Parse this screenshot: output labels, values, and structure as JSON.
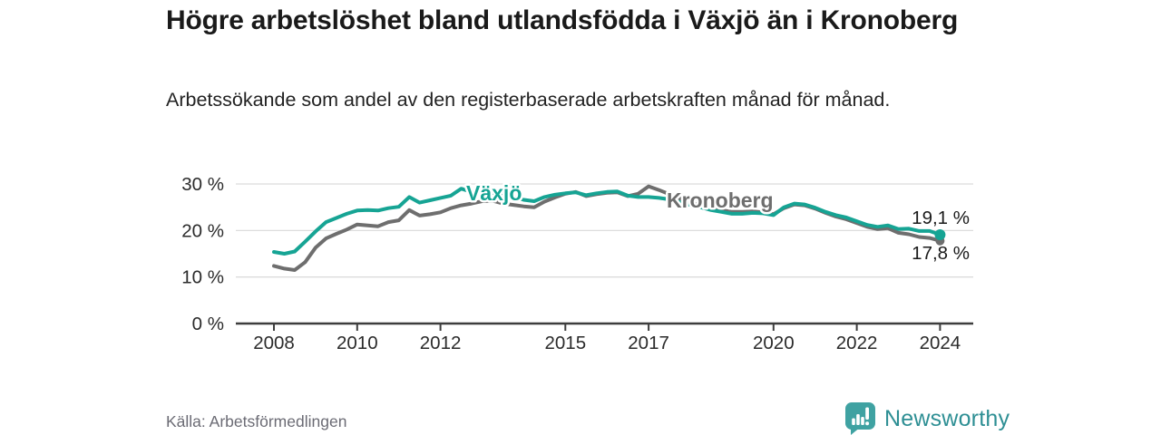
{
  "header": {
    "title": "Högre arbetslöshet bland utlandsfödda i Växjö än i Kronoberg",
    "subtitle": "Arbetssökande som andel av den registerbaserade arbetskraften månad för månad."
  },
  "footer": {
    "source": "Källa: Arbetsförmedlingen",
    "brand": "Newsworthy"
  },
  "colors": {
    "vaxjo": "#16a494",
    "kronoberg": "#6e6e6e",
    "grid": "#dcdcdc",
    "axis": "#3d3d3d",
    "brand_teal": "#3fa2a2"
  },
  "chart_data": {
    "type": "line",
    "unit": "%",
    "xlim": [
      2008,
      2024
    ],
    "ylim": [
      0,
      31
    ],
    "grid": "horizontal",
    "x_ticks": [
      2008,
      2010,
      2012,
      2015,
      2017,
      2020,
      2022,
      2024
    ],
    "x_tick_labels": [
      "2008",
      "2010",
      "2012",
      "2015",
      "2017",
      "2020",
      "2022",
      "2024"
    ],
    "y_ticks": [
      0,
      10,
      20,
      30
    ],
    "y_tick_labels": [
      "0 %",
      "10 %",
      "20 %",
      "30 %"
    ],
    "x": [
      2008,
      2008.25,
      2008.5,
      2008.75,
      2009,
      2009.25,
      2009.5,
      2009.75,
      2010,
      2010.25,
      2010.5,
      2010.75,
      2011,
      2011.25,
      2011.5,
      2011.75,
      2012,
      2012.25,
      2012.5,
      2012.75,
      2013,
      2013.25,
      2013.5,
      2013.75,
      2014,
      2014.25,
      2014.5,
      2014.75,
      2015,
      2015.25,
      2015.5,
      2015.75,
      2016,
      2016.25,
      2016.5,
      2016.75,
      2017,
      2017.25,
      2017.5,
      2017.75,
      2018,
      2018.25,
      2018.5,
      2018.75,
      2019,
      2019.25,
      2019.5,
      2019.75,
      2020,
      2020.25,
      2020.5,
      2020.75,
      2021,
      2021.25,
      2021.5,
      2021.75,
      2022,
      2022.25,
      2022.5,
      2022.75,
      2023,
      2023.25,
      2023.5,
      2023.75,
      2024
    ],
    "series": [
      {
        "name": "Växjö",
        "color": "#16a494",
        "end_label": "19,1 %",
        "end_value": 19.1,
        "values": [
          15.4,
          15.0,
          15.5,
          17.6,
          19.8,
          21.8,
          22.7,
          23.6,
          24.3,
          24.4,
          24.3,
          24.8,
          25.1,
          27.2,
          26.0,
          26.5,
          27.0,
          27.5,
          29.0,
          28.3,
          28.8,
          28.1,
          27.5,
          27.2,
          26.6,
          26.3,
          27.2,
          27.7,
          28.0,
          28.2,
          27.6,
          28.0,
          28.3,
          28.4,
          27.5,
          27.2,
          27.2,
          27.0,
          26.7,
          26.1,
          25.5,
          25.0,
          24.4,
          24.0,
          23.6,
          23.6,
          23.8,
          23.7,
          23.3,
          25.0,
          25.8,
          25.6,
          24.9,
          24.0,
          23.3,
          22.8,
          22.0,
          21.2,
          20.8,
          21.1,
          20.3,
          20.4,
          19.9,
          19.9,
          19.1
        ]
      },
      {
        "name": "Kronoberg",
        "color": "#6e6e6e",
        "end_label": "17,8 %",
        "end_value": 17.8,
        "values": [
          12.4,
          11.8,
          11.5,
          13.2,
          16.3,
          18.3,
          19.3,
          20.2,
          21.3,
          21.1,
          20.9,
          21.8,
          22.2,
          24.4,
          23.2,
          23.5,
          23.9,
          24.8,
          25.4,
          25.8,
          26.3,
          26.4,
          25.8,
          25.5,
          25.2,
          25.0,
          26.2,
          27.1,
          27.9,
          28.3,
          27.4,
          27.8,
          28.1,
          28.2,
          27.4,
          27.9,
          29.5,
          28.7,
          27.8,
          26.9,
          26.0,
          25.4,
          24.8,
          24.4,
          24.0,
          24.0,
          24.1,
          23.9,
          23.5,
          24.8,
          25.6,
          25.4,
          24.7,
          23.8,
          23.0,
          22.4,
          21.6,
          20.8,
          20.3,
          20.5,
          19.5,
          19.2,
          18.6,
          18.4,
          17.8
        ]
      }
    ]
  }
}
